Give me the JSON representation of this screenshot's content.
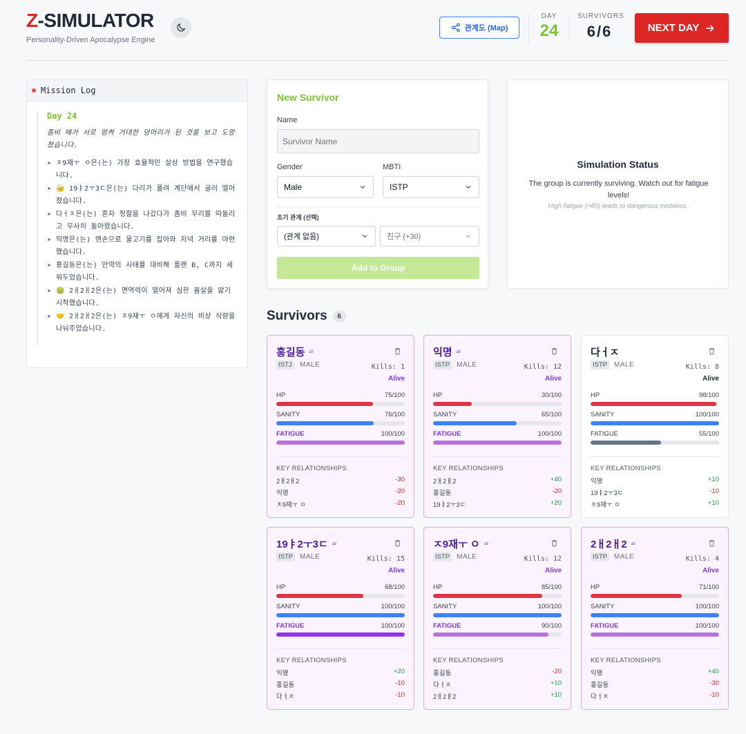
{
  "header": {
    "brand_prefix": "Z",
    "brand_rest": "-SIMULATOR",
    "subtitle": "Personality-Driven Apocalypse Engine",
    "map_label": "관계도 (Map)",
    "day_label": "DAY",
    "day_value": "24",
    "survivors_label": "SURVIVORS",
    "survivors_value": "6/6",
    "next_label": "NEXT DAY",
    "icons": {
      "theme": "moon-icon",
      "map": "share-icon",
      "next": "arrow-right-icon"
    }
  },
  "log": {
    "title": "Mission Log",
    "day": "Day 24",
    "intro": "좀비 떼가 서로 엉켜 거대한 덩어리가 된 것을 보고 도망쳤습니다.",
    "entries": [
      "ㅈ9재ㅜ ㅇ은(는) 가장 효율적인 살상 방법을 연구했습니다.",
      "🤕 19ㅑ2ㅜ3ㄷ은(는) 다리가 풀려 계단에서 굴러 떨어졌습니다.",
      "다ㅓㅈ은(는) 혼자 정찰을 나갔다가 좀비 무리를 따돌리고 무사히 돌아왔습니다.",
      "익명은(는) 맨손으로 물고기를 잡아와 저녁 거리를 마련했습니다.",
      "홍길동은(는) 만약의 사태를 대비해 플랜 B, C까지 세워두었습니다.",
      "🤢 2ㅐ2ㅐ2은(는) 면역력이 떨어져 심한 몸살을 앓기 시작했습니다.",
      "🤝 2ㅐ2ㅐ2은(는) ㅈ9재ㅜ ㅇ에게 자신의 비상 식량을 나눠주었습니다."
    ]
  },
  "form": {
    "title": "New Survivor",
    "name_label": "Name",
    "name_placeholder": "Survivor Name",
    "gender_label": "Gender",
    "gender_value": "Male",
    "mbti_label": "MBTI",
    "mbti_value": "ISTP",
    "relation_label": "초기 관계 (선택)",
    "relation_target": "(관계 없음)",
    "relation_type": "친구 (+30)",
    "add_label": "Add to Group"
  },
  "status": {
    "title": "Simulation Status",
    "desc": "The group is currently surviving. Watch out for fatigue levels!",
    "note": "High fatigue (>80) leads to dangerous mistakes."
  },
  "survivors_heading": "Survivors",
  "survivors_count": "6",
  "labels": {
    "hp": "HP",
    "sanity": "SANITY",
    "fatigue": "FATIGUE",
    "rel": "KEY RELATIONSHIPS",
    "kills": "Kills:"
  },
  "survivors": [
    {
      "name": "홍길동",
      "mbti": "ISTJ",
      "gender": "MALE",
      "kills": "1",
      "status": "Alive",
      "sleeping": true,
      "hp": 75,
      "sanity": 76,
      "fatigue": 100,
      "hp_text": "75/100",
      "sanity_text": "76/100",
      "fatigue_text": "100/100",
      "relationships": [
        {
          "name": "2ㅐ2ㅐ2",
          "value": "-30"
        },
        {
          "name": "익명",
          "value": "-20"
        },
        {
          "name": "ㅈ9재ㅜ ㅇ",
          "value": "-20"
        }
      ]
    },
    {
      "name": "익명",
      "mbti": "ISTP",
      "gender": "MALE",
      "kills": "12",
      "status": "Alive",
      "sleeping": true,
      "hp": 30,
      "sanity": 65,
      "fatigue": 100,
      "hp_text": "30/100",
      "sanity_text": "65/100",
      "fatigue_text": "100/100",
      "relationships": [
        {
          "name": "2ㅐ2ㅐ2",
          "value": "+40"
        },
        {
          "name": "홍길동",
          "value": "-20"
        },
        {
          "name": "19ㅑ2ㅜ3ㄷ",
          "value": "+20"
        }
      ]
    },
    {
      "name": "다ㅓㅈ",
      "mbti": "ISTP",
      "gender": "MALE",
      "kills": "8",
      "status": "Alive",
      "sleeping": false,
      "hp": 98,
      "sanity": 100,
      "fatigue": 55,
      "hp_text": "98/100",
      "sanity_text": "100/100",
      "fatigue_text": "55/100",
      "relationships": [
        {
          "name": "익명",
          "value": "+10"
        },
        {
          "name": "19ㅑ2ㅜ3ㄷ",
          "value": "-10"
        },
        {
          "name": "ㅈ9재ㅜ ㅇ",
          "value": "+10"
        }
      ]
    },
    {
      "name": "19ㅑ2ㅜ3ㄷ",
      "mbti": "ISTP",
      "gender": "MALE",
      "kills": "15",
      "status": "Alive",
      "sleeping": true,
      "hp": 68,
      "sanity": 100,
      "fatigue": 100,
      "hp_text": "68/100",
      "sanity_text": "100/100",
      "fatigue_text": "100/100",
      "relationships": [
        {
          "name": "익명",
          "value": "+20"
        },
        {
          "name": "홍길동",
          "value": "-10"
        },
        {
          "name": "다ㅓㅈ",
          "value": "-10"
        }
      ]
    },
    {
      "name": "ㅈ9재ㅜ ㅇ",
      "mbti": "ISTP",
      "gender": "MALE",
      "kills": "12",
      "status": "Alive",
      "sleeping": true,
      "hp": 85,
      "sanity": 100,
      "fatigue": 90,
      "hp_text": "85/100",
      "sanity_text": "100/100",
      "fatigue_text": "90/100",
      "relationships": [
        {
          "name": "홍길동",
          "value": "-20"
        },
        {
          "name": "다ㅓㅈ",
          "value": "+10"
        },
        {
          "name": "2ㅐ2ㅐ2",
          "value": "+10"
        }
      ]
    },
    {
      "name": "2ㅐ2ㅐ2",
      "mbti": "ISTP",
      "gender": "MALE",
      "kills": "4",
      "status": "Alive",
      "sleeping": true,
      "hp": 71,
      "sanity": 100,
      "fatigue": 100,
      "hp_text": "71/100",
      "sanity_text": "100/100",
      "fatigue_text": "100/100",
      "relationships": [
        {
          "name": "익명",
          "value": "+40"
        },
        {
          "name": "홍길동",
          "value": "-30"
        },
        {
          "name": "다ㅓㅈ",
          "value": "-10"
        }
      ]
    }
  ],
  "colors": {
    "accent_green": "#7cc531",
    "danger_red": "#dc2626",
    "fatigue_purple": "#b772e0",
    "sanity_blue": "#3b82f6",
    "hp_red": "#dc3545"
  }
}
